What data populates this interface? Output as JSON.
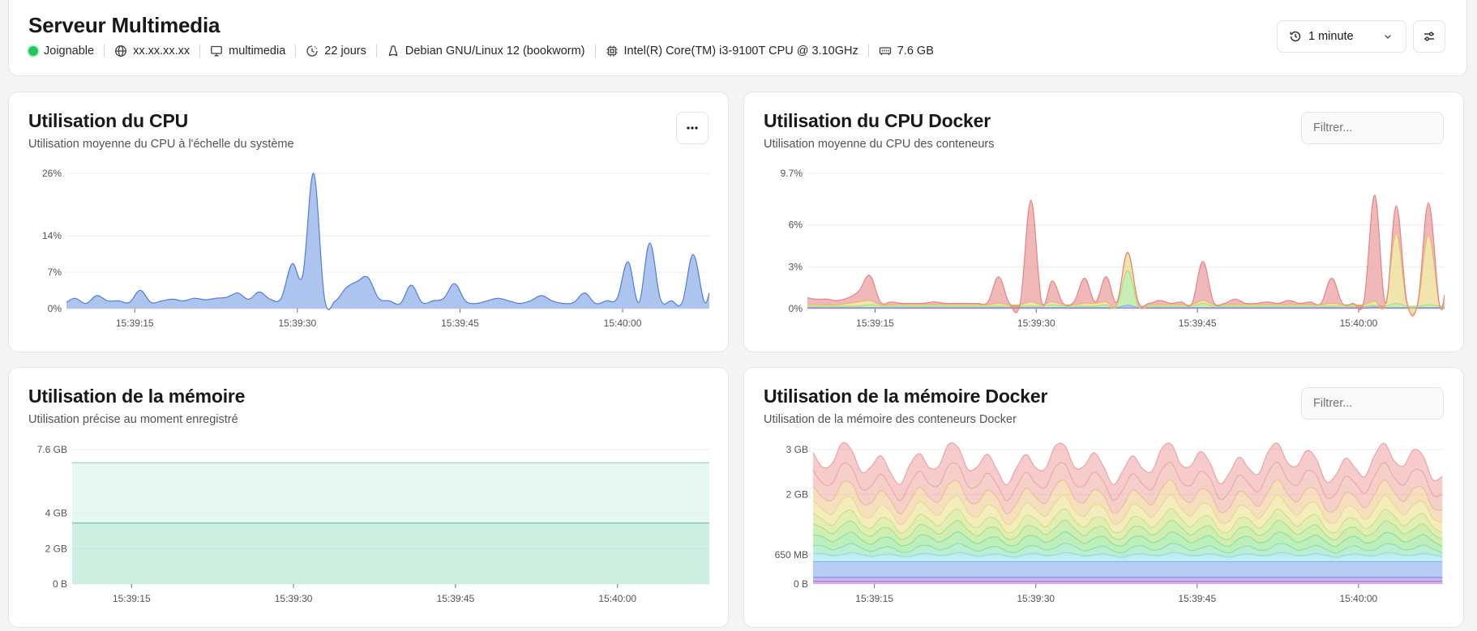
{
  "header": {
    "title": "Serveur Multimedia",
    "status": "Joignable",
    "ip": "xx.xx.xx.xx",
    "hostname": "multimedia",
    "uptime": "22 jours",
    "os": "Debian GNU/Linux 12 (bookworm)",
    "cpu": "Intel(R) Core(TM) i3-9100T CPU @ 3.10GHz",
    "memory": "7.6 GB",
    "time_range": "1 minute",
    "icons": {
      "status": "status-dot",
      "ip": "globe-icon",
      "hostname": "monitor-icon",
      "uptime": "clock-icon",
      "os": "linux-icon",
      "cpu": "cpu-icon",
      "memory": "memory-icon",
      "time_range": "history-icon",
      "settings": "sliders-icon"
    },
    "colors": {
      "status": "#22c55e"
    }
  },
  "panels": {
    "cpu": {
      "title": "Utilisation du CPU",
      "subtitle": "Utilisation moyenne du CPU à l'échelle du système"
    },
    "cpu_docker": {
      "title": "Utilisation du CPU Docker",
      "subtitle": "Utilisation moyenne du CPU des conteneurs",
      "filter_placeholder": "Filtrer..."
    },
    "memory": {
      "title": "Utilisation de la mémoire",
      "subtitle": "Utilisation précise au moment enregistré"
    },
    "memory_docker": {
      "title": "Utilisation de la mémoire Docker",
      "subtitle": "Utilisation de la mémoire des conteneurs Docker",
      "filter_placeholder": "Filtrer..."
    }
  },
  "chart_data": [
    {
      "id": "cpu",
      "type": "area",
      "title": "",
      "xlabel": "",
      "ylabel": "",
      "x_ticks": [
        "15:39:15",
        "15:39:30",
        "15:39:45",
        "15:40:00"
      ],
      "x_tick_values": [
        15,
        30,
        45,
        60
      ],
      "xlim": [
        8.7,
        68
      ],
      "y_ticks": [
        "0%",
        "7%",
        "14%",
        "26%"
      ],
      "y_tick_values": [
        0,
        7,
        14,
        26
      ],
      "ylim": [
        0,
        26
      ],
      "grid": true,
      "colors": {
        "fill": "#a9c1ee",
        "stroke": "#4f7ed8"
      },
      "series": [
        {
          "x": [
            8.7,
            9.5,
            10.5,
            11.5,
            12.5,
            13.5,
            14.5,
            15.5,
            16.5,
            17.5,
            18.5,
            19.5,
            20.5,
            21.5,
            22.5,
            23.5,
            24.5,
            25.5,
            26.5,
            27.5,
            28.5,
            29.5,
            30.5,
            31.5,
            32.5,
            33.5,
            34.5,
            35.5,
            36.5,
            37.5,
            38.5,
            39.5,
            40.5,
            41.5,
            42.5,
            43.5,
            44.5,
            45.5,
            46.5,
            47.5,
            48.5,
            49.5,
            50.5,
            51.5,
            52.5,
            53.5,
            54.5,
            55.5,
            56.5,
            57.5,
            58.5,
            59.5,
            60.5,
            61.5,
            62.5,
            63.5,
            64.5,
            65.5,
            66.5,
            67.5,
            68
          ],
          "values": [
            1.2,
            2.0,
            1.0,
            2.5,
            1.5,
            1.5,
            1.2,
            3.5,
            1.2,
            1.5,
            1.8,
            1.5,
            2.0,
            1.7,
            2.0,
            2.2,
            3.0,
            1.8,
            3.2,
            1.8,
            2.0,
            8.6,
            6.5,
            26.0,
            2.0,
            1.5,
            4.0,
            5.2,
            6.0,
            2.0,
            1.5,
            1.0,
            4.5,
            1.2,
            1.5,
            2.0,
            4.8,
            1.5,
            1.0,
            1.5,
            2.0,
            1.5,
            1.0,
            1.5,
            2.5,
            1.5,
            1.0,
            1.2,
            3.0,
            1.0,
            1.5,
            2.0,
            9.0,
            1.2,
            12.6,
            1.8,
            1.5,
            1.2,
            10.4,
            1.5,
            3.0
          ]
        }
      ]
    },
    {
      "id": "cpu_docker",
      "type": "area",
      "title": "",
      "xlabel": "",
      "ylabel": "",
      "x_ticks": [
        "15:39:15",
        "15:39:30",
        "15:39:45",
        "15:40:00"
      ],
      "x_tick_values": [
        15,
        30,
        45,
        60
      ],
      "xlim": [
        8.7,
        68
      ],
      "y_ticks": [
        "0%",
        "3%",
        "6%",
        "9.7%"
      ],
      "y_tick_values": [
        0,
        3,
        6,
        9.7
      ],
      "ylim": [
        0,
        9.7
      ],
      "grid": true,
      "stacked": true,
      "series": [
        {
          "color": "#e67e80",
          "x": [
            8.7,
            9.5,
            10.5,
            11.5,
            12.5,
            13.5,
            14.5,
            15.5,
            16.5,
            17.5,
            18.5,
            19.5,
            20.5,
            21.5,
            22.5,
            23.5,
            24.5,
            25.5,
            26.5,
            27.5,
            28.5,
            29.5,
            30.5,
            31.5,
            32.5,
            33.5,
            34.5,
            35.5,
            36.5,
            37.5,
            38.5,
            39.5,
            40.5,
            41.5,
            42.5,
            43.5,
            44.5,
            45.5,
            46.5,
            47.5,
            48.5,
            49.5,
            50.5,
            51.5,
            52.5,
            53.5,
            54.5,
            55.5,
            56.5,
            57.5,
            58.5,
            59.5,
            60.5,
            61.5,
            62.5,
            63.5,
            64.5,
            65.5,
            66.5,
            67.5,
            68
          ],
          "values": [
            0.5,
            0.4,
            0.4,
            0.3,
            0.4,
            0.8,
            1.8,
            0.2,
            0.2,
            0.1,
            0.1,
            0.1,
            0.2,
            0.1,
            0.1,
            0.1,
            0.1,
            0.2,
            1.9,
            0.1,
            0.1,
            7.3,
            0.2,
            1.5,
            0.1,
            0.2,
            1.8,
            0.1,
            1.8,
            0.2,
            0.1,
            0.2,
            0.1,
            0.3,
            0.1,
            0.2,
            0.1,
            2.8,
            0.2,
            0.1,
            0.4,
            0.1,
            0.1,
            0.2,
            0.1,
            0.3,
            0.1,
            0.2,
            0.1,
            1.8,
            0.1,
            0.1,
            0.3,
            7.6,
            0.1,
            2.0,
            0.2,
            0.1,
            2.3,
            0.1,
            0.6
          ]
        },
        {
          "color": "#e6d06a",
          "x": [
            8.7,
            9.5,
            10.5,
            11.5,
            12.5,
            13.5,
            14.5,
            15.5,
            16.5,
            17.5,
            18.5,
            19.5,
            20.5,
            21.5,
            22.5,
            23.5,
            24.5,
            25.5,
            26.5,
            27.5,
            28.5,
            29.5,
            30.5,
            31.5,
            32.5,
            33.5,
            34.5,
            35.5,
            36.5,
            37.5,
            38.5,
            39.5,
            40.5,
            41.5,
            42.5,
            43.5,
            44.5,
            45.5,
            46.5,
            47.5,
            48.5,
            49.5,
            50.5,
            51.5,
            52.5,
            53.5,
            54.5,
            55.5,
            56.5,
            57.5,
            58.5,
            59.5,
            60.5,
            61.5,
            62.5,
            63.5,
            64.5,
            65.5,
            66.5,
            67.5,
            68
          ],
          "values": [
            0.1,
            0.1,
            0.1,
            0.1,
            0.2,
            0.3,
            0.3,
            0.1,
            0.1,
            0.1,
            0.1,
            0.1,
            0.1,
            0.1,
            0.1,
            0.1,
            0.1,
            0.1,
            0.2,
            0.1,
            0.1,
            0.3,
            0.1,
            0.2,
            0.1,
            0.1,
            0.2,
            0.2,
            0.2,
            0.1,
            1.2,
            0.1,
            0.1,
            0.1,
            0.1,
            0.1,
            0.1,
            0.2,
            0.1,
            0.1,
            0.1,
            0.1,
            0.1,
            0.1,
            0.1,
            0.1,
            0.1,
            0.1,
            0.1,
            0.2,
            0.1,
            0.1,
            0.1,
            0.3,
            0.1,
            5.0,
            0.1,
            0.1,
            5.0,
            0.1,
            0.2
          ]
        },
        {
          "color": "#9be07a",
          "x": [
            8.7,
            9.5,
            10.5,
            11.5,
            12.5,
            13.5,
            14.5,
            15.5,
            16.5,
            17.5,
            18.5,
            19.5,
            20.5,
            21.5,
            22.5,
            23.5,
            24.5,
            25.5,
            26.5,
            27.5,
            28.5,
            29.5,
            30.5,
            31.5,
            32.5,
            33.5,
            34.5,
            35.5,
            36.5,
            37.5,
            38.5,
            39.5,
            40.5,
            41.5,
            42.5,
            43.5,
            44.5,
            45.5,
            46.5,
            47.5,
            48.5,
            49.5,
            50.5,
            51.5,
            52.5,
            53.5,
            54.5,
            55.5,
            56.5,
            57.5,
            58.5,
            59.5,
            60.5,
            61.5,
            62.5,
            63.5,
            64.5,
            65.5,
            66.5,
            67.5,
            68
          ],
          "values": [
            0.1,
            0.1,
            0.1,
            0.1,
            0.1,
            0.1,
            0.2,
            0.1,
            0.1,
            0.1,
            0.1,
            0.1,
            0.1,
            0.1,
            0.1,
            0.1,
            0.1,
            0.1,
            0.1,
            0.1,
            0.1,
            0.1,
            0.1,
            0.2,
            0.1,
            0.1,
            0.1,
            0.1,
            0.2,
            0.1,
            2.5,
            0.1,
            0.1,
            0.1,
            0.1,
            0.1,
            0.1,
            0.3,
            0.1,
            0.1,
            0.1,
            0.1,
            0.1,
            0.1,
            0.1,
            0.1,
            0.1,
            0.1,
            0.1,
            0.1,
            0.1,
            0.1,
            0.1,
            0.1,
            0.1,
            0.3,
            0.1,
            0.1,
            0.2,
            0.1,
            0.1
          ]
        },
        {
          "color": "#6fa8e8",
          "x": [
            8.7,
            9.5,
            10.5,
            11.5,
            12.5,
            13.5,
            14.5,
            15.5,
            16.5,
            17.5,
            18.5,
            19.5,
            20.5,
            21.5,
            22.5,
            23.5,
            24.5,
            25.5,
            26.5,
            27.5,
            28.5,
            29.5,
            30.5,
            31.5,
            32.5,
            33.5,
            34.5,
            35.5,
            36.5,
            37.5,
            38.5,
            39.5,
            40.5,
            41.5,
            42.5,
            43.5,
            44.5,
            45.5,
            46.5,
            47.5,
            48.5,
            49.5,
            50.5,
            51.5,
            52.5,
            53.5,
            54.5,
            55.5,
            56.5,
            57.5,
            58.5,
            59.5,
            60.5,
            61.5,
            62.5,
            63.5,
            64.5,
            65.5,
            66.5,
            67.5,
            68
          ],
          "values": [
            0.05,
            0.05,
            0.05,
            0.05,
            0.05,
            0.05,
            0.05,
            0.05,
            0.05,
            0.05,
            0.05,
            0.05,
            0.05,
            0.05,
            0.05,
            0.05,
            0.05,
            0.05,
            0.05,
            0.05,
            0.05,
            0.05,
            0.05,
            0.05,
            0.05,
            0.05,
            0.05,
            0.05,
            0.05,
            0.05,
            0.2,
            0.05,
            0.05,
            0.05,
            0.05,
            0.05,
            0.05,
            0.05,
            0.05,
            0.05,
            0.05,
            0.05,
            0.05,
            0.05,
            0.05,
            0.05,
            0.05,
            0.05,
            0.05,
            0.05,
            0.05,
            0.05,
            0.05,
            0.05,
            0.05,
            0.05,
            0.05,
            0.05,
            0.05,
            0.05,
            0.05
          ]
        },
        {
          "color": "#c266d6",
          "x": [
            8.7,
            9.5,
            10.5,
            11.5,
            12.5,
            13.5,
            14.5,
            15.5,
            16.5,
            17.5,
            18.5,
            19.5,
            20.5,
            21.5,
            22.5,
            23.5,
            24.5,
            25.5,
            26.5,
            27.5,
            28.5,
            29.5,
            30.5,
            31.5,
            32.5,
            33.5,
            34.5,
            35.5,
            36.5,
            37.5,
            38.5,
            39.5,
            40.5,
            41.5,
            42.5,
            43.5,
            44.5,
            45.5,
            46.5,
            47.5,
            48.5,
            49.5,
            50.5,
            51.5,
            52.5,
            53.5,
            54.5,
            55.5,
            56.5,
            57.5,
            58.5,
            59.5,
            60.5,
            61.5,
            62.5,
            63.5,
            64.5,
            65.5,
            66.5,
            67.5,
            68
          ],
          "values": [
            0.03,
            0.03,
            0.03,
            0.03,
            0.03,
            0.03,
            0.03,
            0.03,
            0.03,
            0.03,
            0.03,
            0.03,
            0.03,
            0.03,
            0.03,
            0.03,
            0.03,
            0.03,
            0.03,
            0.03,
            0.03,
            0.03,
            0.03,
            0.03,
            0.03,
            0.03,
            0.03,
            0.03,
            0.03,
            0.03,
            0.05,
            0.03,
            0.03,
            0.03,
            0.03,
            0.03,
            0.03,
            0.03,
            0.03,
            0.03,
            0.03,
            0.03,
            0.03,
            0.03,
            0.03,
            0.03,
            0.03,
            0.03,
            0.03,
            0.03,
            0.03,
            0.03,
            0.03,
            0.08,
            0.03,
            0.03,
            0.03,
            0.03,
            0.03,
            0.03,
            0.03
          ]
        }
      ]
    },
    {
      "id": "memory",
      "type": "area",
      "title": "",
      "xlabel": "",
      "ylabel": "",
      "x_ticks": [
        "15:39:15",
        "15:39:30",
        "15:39:45",
        "15:40:00"
      ],
      "x_tick_values": [
        15,
        30,
        45,
        60
      ],
      "xlim": [
        9.5,
        68.5
      ],
      "y_ticks": [
        "0 B",
        "2 GB",
        "4 GB",
        "7.6 GB"
      ],
      "y_tick_values": [
        0,
        2,
        4,
        7.6
      ],
      "ylim": [
        0,
        7.6
      ],
      "grid": true,
      "stacked": true,
      "series": [
        {
          "color": "#a6e3cc",
          "stroke": "#3fb28a",
          "x": [
            9.5,
            68.5
          ],
          "values": [
            3.45,
            3.45
          ]
        },
        {
          "color": "#d3f1e6",
          "stroke": "#8fd6bb",
          "x": [
            9.5,
            68.5
          ],
          "values": [
            3.4,
            3.4
          ]
        }
      ]
    },
    {
      "id": "memory_docker",
      "type": "area",
      "title": "",
      "xlabel": "",
      "ylabel": "",
      "x_ticks": [
        "15:39:15",
        "15:39:30",
        "15:39:45",
        "15:40:00"
      ],
      "x_tick_values": [
        15,
        30,
        45,
        60
      ],
      "xlim": [
        9.3,
        68
      ],
      "y_ticks": [
        "0 B",
        "650 MB",
        "2 GB",
        "3 GB"
      ],
      "y_tick_values": [
        0,
        0.65,
        2,
        3
      ],
      "ylim": [
        0,
        3
      ],
      "grid": true,
      "stacked": true,
      "series": [
        {
          "color": "#c266d6",
          "base": 0.06
        },
        {
          "color": "#8a7fe0",
          "base": 0.09
        },
        {
          "color": "#7aa6ee",
          "base": 0.35
        },
        {
          "color": "#8fe0e6",
          "base": 0.15
        },
        {
          "color": "#86e0b0",
          "base": 0.15
        },
        {
          "color": "#86e086",
          "base": 0.2
        },
        {
          "color": "#a6e07a",
          "base": 0.2
        },
        {
          "color": "#c8e07a",
          "base": 0.2
        },
        {
          "color": "#eadf86",
          "base": 0.25
        },
        {
          "color": "#eec48a",
          "base": 0.3
        },
        {
          "color": "#ecaaa0",
          "base": 0.35
        },
        {
          "color": "#eca0a0",
          "base": 0.4
        }
      ]
    }
  ]
}
